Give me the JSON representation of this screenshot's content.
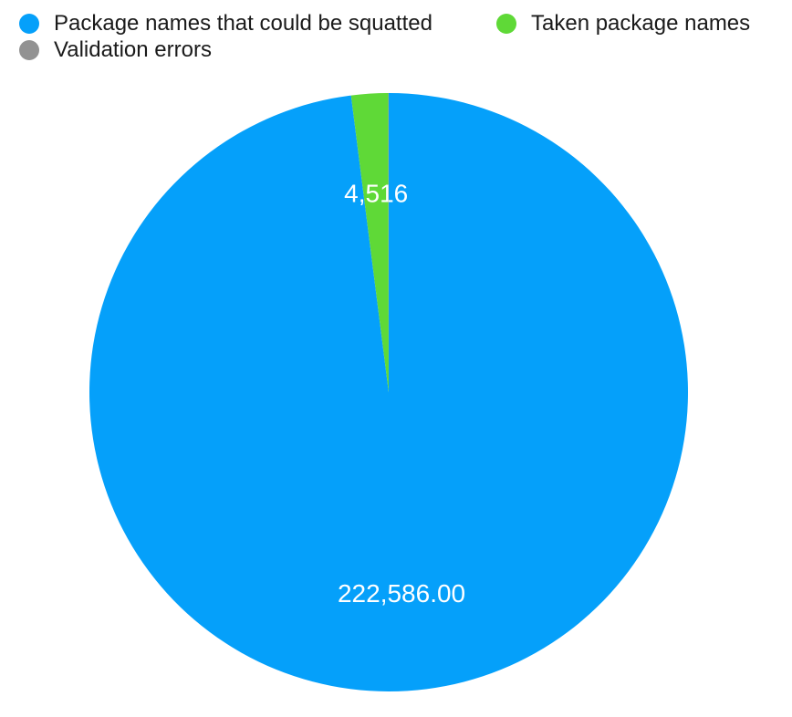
{
  "chart_data": {
    "type": "pie",
    "title": "",
    "slices": [
      {
        "name": "Package names that could be squatted",
        "value": 222586.0,
        "label": "222,586.00",
        "color": "#05a0fa"
      },
      {
        "name": "Taken package names",
        "value": 4516,
        "label": "4,516",
        "color": "#5fd937"
      },
      {
        "name": "Validation errors",
        "value": 45,
        "label": "",
        "color": "#929292"
      }
    ],
    "legend": {
      "placement": "top",
      "items": [
        {
          "label": "Package names that could be squatted",
          "color": "#05a0fa"
        },
        {
          "label": "Taken package names",
          "color": "#5fd937"
        },
        {
          "label": "Validation errors",
          "color": "#929292"
        }
      ]
    }
  }
}
